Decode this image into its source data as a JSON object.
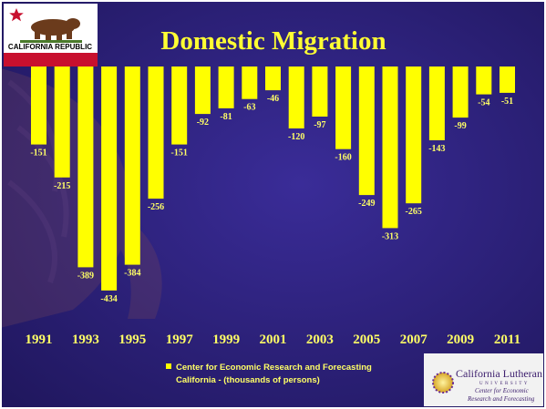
{
  "slide": {
    "flag_text": "CALIFORNIA REPUBLIC",
    "logo": {
      "name": "California Lutheran",
      "sub": "UNIVERSITY",
      "line1": "Center for Economic",
      "line2": "Research and Forecasting"
    }
  },
  "colors": {
    "background": "#2a1f78",
    "bar": "#ffff00",
    "title": "#ffff33",
    "label": "#ffff66",
    "frame": "#ffffff"
  },
  "chart_data": {
    "type": "bar",
    "title": "Domestic Migration",
    "xlabel": "",
    "ylabel": "",
    "ylim": [
      -480,
      0
    ],
    "grid": false,
    "legend_position": "bottom-center",
    "categories": [
      "1991",
      "1992",
      "1993",
      "1994",
      "1995",
      "1996",
      "1997",
      "1998",
      "1999",
      "2000",
      "2001",
      "2002",
      "2003",
      "2004",
      "2005",
      "2006",
      "2007",
      "2008",
      "2009",
      "2010",
      "2011"
    ],
    "x_tick_labels": [
      "1991",
      "1993",
      "1995",
      "1997",
      "1999",
      "2001",
      "2003",
      "2005",
      "2007",
      "2009",
      "2011"
    ],
    "series": [
      {
        "name": "Center for Economic Research and Forecasting California - (thousands of persons)",
        "values": [
          -151,
          -215,
          -389,
          -434,
          -384,
          -256,
          -151,
          -92,
          -81,
          -63,
          -46,
          -120,
          -97,
          -160,
          -249,
          -313,
          -265,
          -143,
          -99,
          -54,
          -51
        ]
      }
    ],
    "legend": {
      "line1": "Center for Economic Research and Forecasting",
      "line2": "California - (thousands of persons)"
    }
  }
}
